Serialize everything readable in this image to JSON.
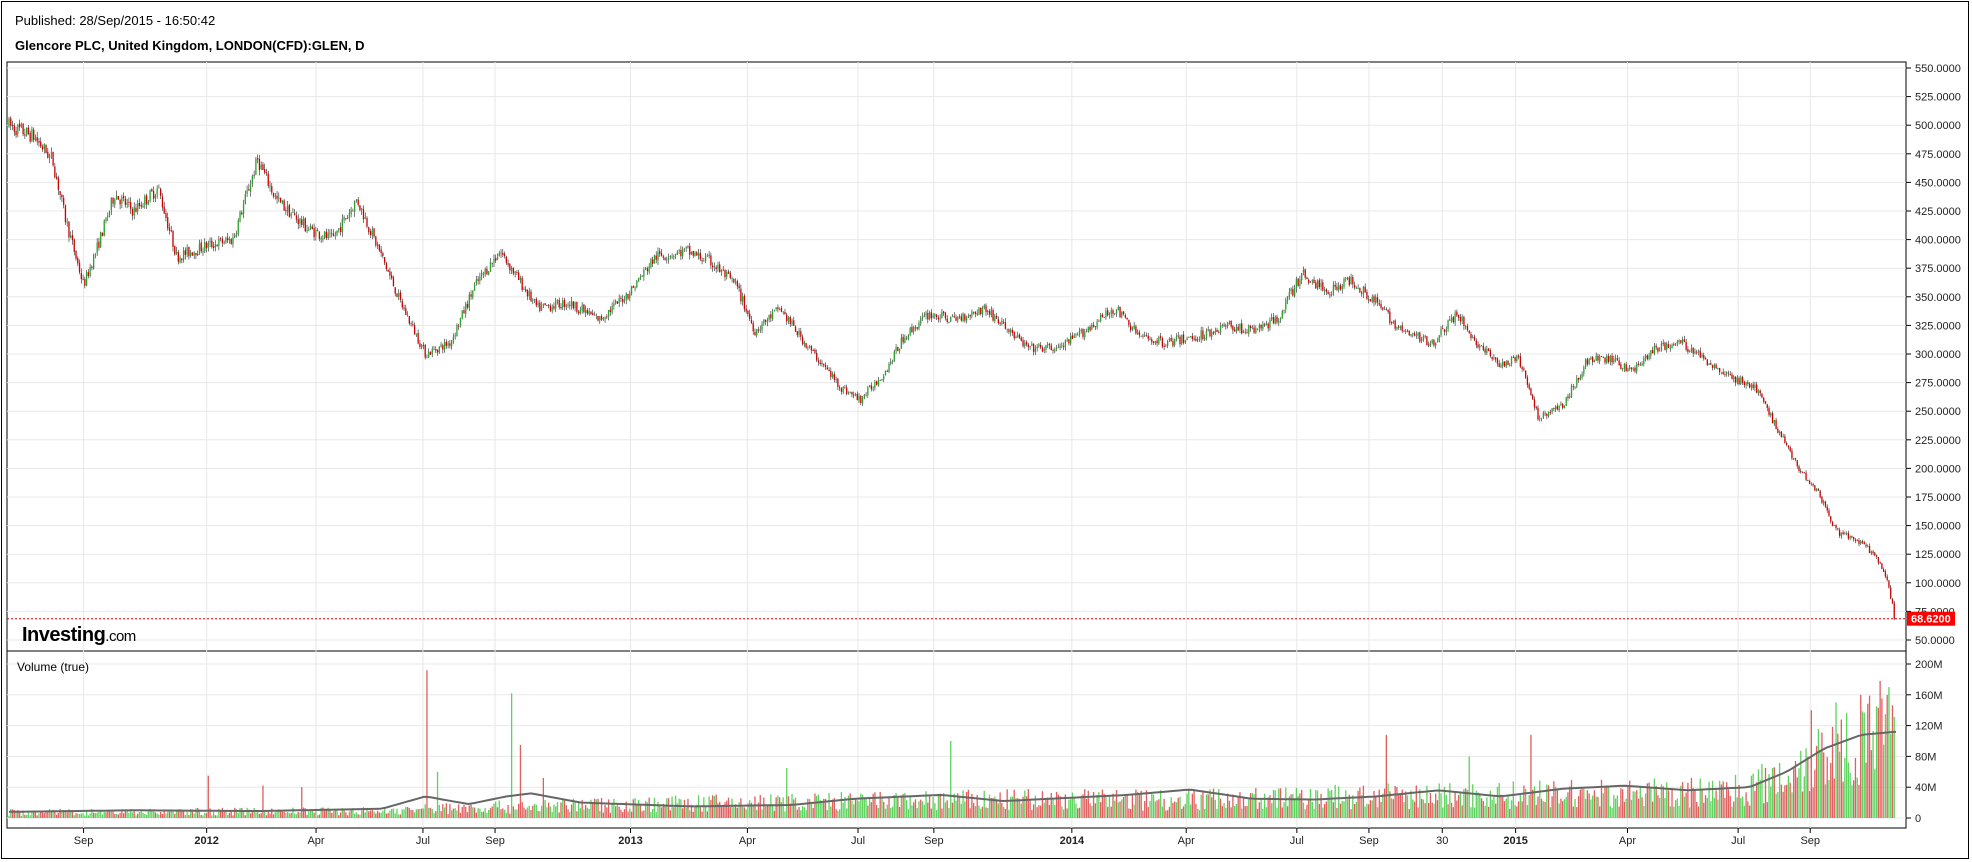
{
  "header": {
    "published": "Published: 28/Sep/2015 - 16:50:42",
    "title": "Glencore PLC, United Kingdom, LONDON(CFD):GLEN, D"
  },
  "brand": {
    "name": "Investing",
    "suffix": ".com"
  },
  "colors": {
    "up": "#2ca02c",
    "down": "#d00000",
    "vol_up": "#5fd35f",
    "vol_down": "#e06060",
    "ma": "#666666",
    "last_price": "#ff0000",
    "grid": "#e8e8e8"
  },
  "chart_data": [
    {
      "type": "candlestick",
      "title": "Glencore PLC, United Kingdom, LONDON(CFD):GLEN, D",
      "ylim": [
        50,
        550
      ],
      "y_ticks": [
        "50.0000",
        "75.0000",
        "100.0000",
        "125.0000",
        "150.0000",
        "175.0000",
        "200.0000",
        "225.0000",
        "250.0000",
        "275.0000",
        "300.0000",
        "325.0000",
        "350.0000",
        "375.0000",
        "400.0000",
        "425.0000",
        "450.0000",
        "475.0000",
        "500.0000",
        "525.0000",
        "550.0000"
      ],
      "x_ticks": [
        {
          "label": "Sep",
          "t": 0.06,
          "bold": false
        },
        {
          "label": "2012",
          "t": 0.159,
          "bold": true
        },
        {
          "label": "Apr",
          "t": 0.247,
          "bold": false
        },
        {
          "label": "Jul",
          "t": 0.333,
          "bold": false
        },
        {
          "label": "Sep",
          "t": 0.391,
          "bold": false
        },
        {
          "label": "2013",
          "t": 0.5,
          "bold": true
        },
        {
          "label": "Apr",
          "t": 0.594,
          "bold": false
        },
        {
          "label": "Jul",
          "t": 0.683,
          "bold": false
        },
        {
          "label": "Sep",
          "t": 0.744,
          "bold": false
        },
        {
          "label": "2014",
          "t": 0.855,
          "bold": true
        },
        {
          "label": "Apr",
          "t": 0.947,
          "bold": false
        },
        {
          "label": "Jul",
          "t": 1.036,
          "bold": false
        },
        {
          "label": "Sep",
          "t": 1.094,
          "bold": false
        },
        {
          "label": "30",
          "t": 1.153,
          "bold": false
        },
        {
          "label": "2015",
          "t": 1.212,
          "bold": true
        },
        {
          "label": "Apr",
          "t": 1.302,
          "bold": false
        },
        {
          "label": "Jul",
          "t": 1.391,
          "bold": false
        },
        {
          "label": "Sep",
          "t": 1.449,
          "bold": false
        }
      ],
      "x_ticks_note": "t in years from the chart start (~Aug 2011)",
      "price_path": [
        [
          0.0,
          500
        ],
        [
          0.02,
          490
        ],
        [
          0.035,
          470
        ],
        [
          0.045,
          420
        ],
        [
          0.06,
          360
        ],
        [
          0.07,
          390
        ],
        [
          0.085,
          440
        ],
        [
          0.1,
          425
        ],
        [
          0.12,
          445
        ],
        [
          0.135,
          385
        ],
        [
          0.16,
          395
        ],
        [
          0.18,
          400
        ],
        [
          0.2,
          470
        ],
        [
          0.215,
          435
        ],
        [
          0.24,
          410
        ],
        [
          0.26,
          400
        ],
        [
          0.28,
          435
        ],
        [
          0.3,
          385
        ],
        [
          0.315,
          345
        ],
        [
          0.335,
          300
        ],
        [
          0.355,
          310
        ],
        [
          0.375,
          360
        ],
        [
          0.395,
          390
        ],
        [
          0.41,
          365
        ],
        [
          0.425,
          340
        ],
        [
          0.45,
          345
        ],
        [
          0.475,
          330
        ],
        [
          0.5,
          355
        ],
        [
          0.52,
          385
        ],
        [
          0.545,
          390
        ],
        [
          0.565,
          380
        ],
        [
          0.585,
          360
        ],
        [
          0.6,
          320
        ],
        [
          0.62,
          340
        ],
        [
          0.64,
          310
        ],
        [
          0.655,
          290
        ],
        [
          0.67,
          270
        ],
        [
          0.685,
          260
        ],
        [
          0.705,
          285
        ],
        [
          0.72,
          315
        ],
        [
          0.74,
          335
        ],
        [
          0.76,
          330
        ],
        [
          0.785,
          340
        ],
        [
          0.8,
          325
        ],
        [
          0.82,
          305
        ],
        [
          0.845,
          305
        ],
        [
          0.865,
          320
        ],
        [
          0.89,
          340
        ],
        [
          0.91,
          315
        ],
        [
          0.93,
          310
        ],
        [
          0.955,
          315
        ],
        [
          0.98,
          325
        ],
        [
          1.0,
          320
        ],
        [
          1.02,
          330
        ],
        [
          1.04,
          370
        ],
        [
          1.06,
          355
        ],
        [
          1.08,
          365
        ],
        [
          1.1,
          345
        ],
        [
          1.12,
          320
        ],
        [
          1.145,
          310
        ],
        [
          1.165,
          335
        ],
        [
          1.18,
          310
        ],
        [
          1.2,
          290
        ],
        [
          1.215,
          295
        ],
        [
          1.23,
          245
        ],
        [
          1.25,
          255
        ],
        [
          1.27,
          295
        ],
        [
          1.29,
          295
        ],
        [
          1.305,
          285
        ],
        [
          1.325,
          305
        ],
        [
          1.345,
          310
        ],
        [
          1.365,
          295
        ],
        [
          1.385,
          280
        ],
        [
          1.405,
          270
        ],
        [
          1.42,
          240
        ],
        [
          1.44,
          200
        ],
        [
          1.455,
          180
        ],
        [
          1.47,
          145
        ],
        [
          1.49,
          135
        ],
        [
          1.5,
          125
        ],
        [
          1.51,
          105
        ],
        [
          1.518,
          68.62
        ]
      ],
      "last_price": "68.6200",
      "last_price_value": 68.62
    },
    {
      "type": "bar",
      "title": "Volume (true)",
      "ylim": [
        0,
        200
      ],
      "y_unit": "M",
      "y_ticks": [
        "0",
        "40M",
        "80M",
        "120M",
        "160M",
        "200M"
      ],
      "baseline_volume_path": [
        [
          0.0,
          8
        ],
        [
          0.3,
          10
        ],
        [
          0.35,
          14
        ],
        [
          0.45,
          18
        ],
        [
          0.6,
          22
        ],
        [
          0.8,
          26
        ],
        [
          1.0,
          28
        ],
        [
          1.15,
          32
        ],
        [
          1.25,
          34
        ],
        [
          1.35,
          36
        ],
        [
          1.39,
          40
        ],
        [
          1.42,
          55
        ],
        [
          1.45,
          85
        ],
        [
          1.48,
          110
        ],
        [
          1.518,
          115
        ]
      ],
      "spikes": [
        [
          0.16,
          55,
          "down"
        ],
        [
          0.205,
          42,
          "down"
        ],
        [
          0.235,
          40,
          "down"
        ],
        [
          0.336,
          192,
          "down"
        ],
        [
          0.345,
          60,
          "up"
        ],
        [
          0.404,
          162,
          "up"
        ],
        [
          0.411,
          95,
          "down"
        ],
        [
          0.43,
          52,
          "down"
        ],
        [
          0.625,
          65,
          "up"
        ],
        [
          0.758,
          100,
          "up"
        ],
        [
          1.108,
          108,
          "down"
        ],
        [
          1.175,
          80,
          "up"
        ],
        [
          1.225,
          108,
          "down"
        ],
        [
          1.45,
          140,
          "down"
        ],
        [
          1.47,
          150,
          "up"
        ],
        [
          1.49,
          160,
          "down"
        ],
        [
          1.505,
          178,
          "down"
        ],
        [
          1.512,
          170,
          "up"
        ]
      ],
      "moving_average_path": [
        [
          0.0,
          8
        ],
        [
          0.1,
          10
        ],
        [
          0.2,
          9
        ],
        [
          0.3,
          12
        ],
        [
          0.335,
          28
        ],
        [
          0.37,
          18
        ],
        [
          0.4,
          28
        ],
        [
          0.42,
          32
        ],
        [
          0.46,
          20
        ],
        [
          0.55,
          15
        ],
        [
          0.63,
          17
        ],
        [
          0.68,
          25
        ],
        [
          0.75,
          30
        ],
        [
          0.8,
          22
        ],
        [
          0.9,
          30
        ],
        [
          0.95,
          37
        ],
        [
          1.0,
          25
        ],
        [
          1.05,
          24
        ],
        [
          1.1,
          28
        ],
        [
          1.15,
          36
        ],
        [
          1.2,
          28
        ],
        [
          1.25,
          38
        ],
        [
          1.3,
          42
        ],
        [
          1.35,
          36
        ],
        [
          1.4,
          40
        ],
        [
          1.43,
          60
        ],
        [
          1.46,
          90
        ],
        [
          1.49,
          108
        ],
        [
          1.518,
          112
        ]
      ]
    }
  ]
}
